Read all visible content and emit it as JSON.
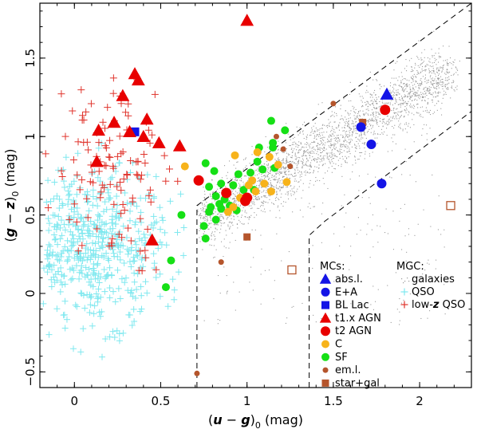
{
  "chart_data": {
    "type": "scatter",
    "xlabel": {
      "open": "(",
      "var1": "u",
      "minus": " − ",
      "var2": "g",
      "close": ")",
      "sub": "0",
      "unit": " (mag)"
    },
    "ylabel": {
      "open": "(",
      "var1": "g",
      "minus": " − ",
      "var2": "z",
      "close": ")",
      "sub": "0",
      "unit": " (mag)"
    },
    "xlim": [
      -0.2,
      2.3
    ],
    "ylim": [
      -0.6,
      1.85
    ],
    "xticks": [
      0,
      0.5,
      1,
      1.5,
      2
    ],
    "xtick_labels": [
      "0",
      "0.5",
      "1",
      "1.5",
      "2"
    ],
    "yticks": [
      -0.5,
      0,
      0.5,
      1,
      1.5
    ],
    "ytick_labels": [
      "−0.5",
      "0",
      "0.5",
      "1",
      "1.5"
    ],
    "colors": {
      "galaxies": "#9a9a9a",
      "qso": "#7fe8ef",
      "lowz_qso": "#e0342c",
      "abs": "#1414e6",
      "e_a": "#1414e6",
      "bl_lac": "#1414e6",
      "t1": "#e80000",
      "t2": "#e80000",
      "c": "#f7b31b",
      "sf": "#16e016",
      "em": "#b5552c",
      "stargal": "#b5552c",
      "boundary": "#000000"
    },
    "legend": {
      "mcs_title": "MCs:",
      "mgc_title": "MGC:",
      "mcs": [
        {
          "key": "abs",
          "label": "abs.l."
        },
        {
          "key": "e_a",
          "label": "E+A"
        },
        {
          "key": "bl_lac",
          "label": "BL Lac"
        },
        {
          "key": "t1",
          "label": "t1.x AGN"
        },
        {
          "key": "t2",
          "label": "t2 AGN"
        },
        {
          "key": "c",
          "label": "C"
        },
        {
          "key": "sf",
          "label": "SF"
        },
        {
          "key": "em",
          "label": "em.l."
        },
        {
          "key": "stargal",
          "label": "star+gal"
        }
      ],
      "mgc": [
        {
          "key": "galaxies",
          "label": "galaxies"
        },
        {
          "key": "qso",
          "label": "QSO"
        },
        {
          "key": "lowz_qso",
          "label_prefix": "low-",
          "label_var": "z",
          "label_suffix": " QSO"
        }
      ]
    },
    "boundaries": [
      {
        "x": [
          0.71,
          0.71,
          2.3
        ],
        "y": [
          -0.6,
          0.56,
          1.85
        ]
      },
      {
        "x": [
          1.36,
          1.36,
          1.45,
          2.3
        ],
        "y": [
          -0.6,
          0.37,
          0.46,
          1.16
        ]
      }
    ],
    "series": {
      "abs": [
        [
          1.81,
          1.27
        ]
      ],
      "e_a": [
        [
          1.66,
          1.06
        ],
        [
          1.72,
          0.95
        ],
        [
          1.78,
          0.7
        ]
      ],
      "bl_lac": [
        [
          0.35,
          1.03
        ]
      ],
      "t1": [
        [
          1.0,
          1.74
        ],
        [
          0.35,
          1.4
        ],
        [
          0.37,
          1.36
        ],
        [
          0.28,
          1.26
        ],
        [
          0.42,
          1.11
        ],
        [
          0.23,
          1.09
        ],
        [
          0.14,
          1.04
        ],
        [
          0.32,
          1.03
        ],
        [
          0.4,
          1.0
        ],
        [
          0.49,
          0.96
        ],
        [
          0.61,
          0.94
        ],
        [
          0.13,
          0.84
        ],
        [
          0.45,
          0.34
        ]
      ],
      "t2": [
        [
          1.8,
          1.17
        ],
        [
          0.72,
          0.72
        ],
        [
          0.88,
          0.64
        ],
        [
          1.0,
          0.61
        ],
        [
          0.99,
          0.59
        ]
      ],
      "c": [
        [
          0.64,
          0.81
        ],
        [
          0.93,
          0.88
        ],
        [
          1.06,
          0.9
        ],
        [
          1.13,
          0.87
        ],
        [
          1.18,
          0.82
        ],
        [
          1.23,
          0.71
        ],
        [
          1.1,
          0.7
        ],
        [
          1.03,
          0.72
        ],
        [
          1.01,
          0.69
        ],
        [
          1.05,
          0.65
        ],
        [
          0.96,
          0.61
        ],
        [
          1.14,
          0.65
        ],
        [
          0.89,
          0.52
        ],
        [
          0.92,
          0.55
        ]
      ],
      "sf": [
        [
          1.14,
          1.1
        ],
        [
          1.22,
          1.04
        ],
        [
          1.15,
          0.96
        ],
        [
          1.07,
          0.93
        ],
        [
          1.15,
          0.93
        ],
        [
          1.06,
          0.84
        ],
        [
          1.16,
          0.8
        ],
        [
          1.09,
          0.79
        ],
        [
          1.02,
          0.77
        ],
        [
          0.76,
          0.83
        ],
        [
          0.81,
          0.78
        ],
        [
          0.95,
          0.76
        ],
        [
          0.85,
          0.7
        ],
        [
          0.78,
          0.68
        ],
        [
          0.92,
          0.69
        ],
        [
          0.98,
          0.66
        ],
        [
          1.04,
          0.66
        ],
        [
          0.82,
          0.62
        ],
        [
          0.87,
          0.6
        ],
        [
          0.84,
          0.57
        ],
        [
          0.79,
          0.55
        ],
        [
          0.85,
          0.54
        ],
        [
          0.9,
          0.56
        ],
        [
          0.94,
          0.53
        ],
        [
          0.78,
          0.52
        ],
        [
          0.62,
          0.5
        ],
        [
          0.82,
          0.47
        ],
        [
          0.75,
          0.43
        ],
        [
          0.76,
          0.35
        ],
        [
          0.56,
          0.21
        ],
        [
          0.53,
          0.04
        ]
      ],
      "em": [
        [
          1.5,
          1.21
        ],
        [
          1.17,
          1.0
        ],
        [
          1.21,
          0.92
        ],
        [
          1.25,
          0.81
        ],
        [
          0.85,
          0.2
        ],
        [
          0.71,
          -0.51
        ]
      ],
      "stargal": [
        [
          1.67,
          1.09
        ],
        [
          1.0,
          0.36
        ]
      ],
      "stargal_open": [
        [
          1.26,
          0.15
        ],
        [
          2.18,
          0.56
        ]
      ]
    }
  }
}
